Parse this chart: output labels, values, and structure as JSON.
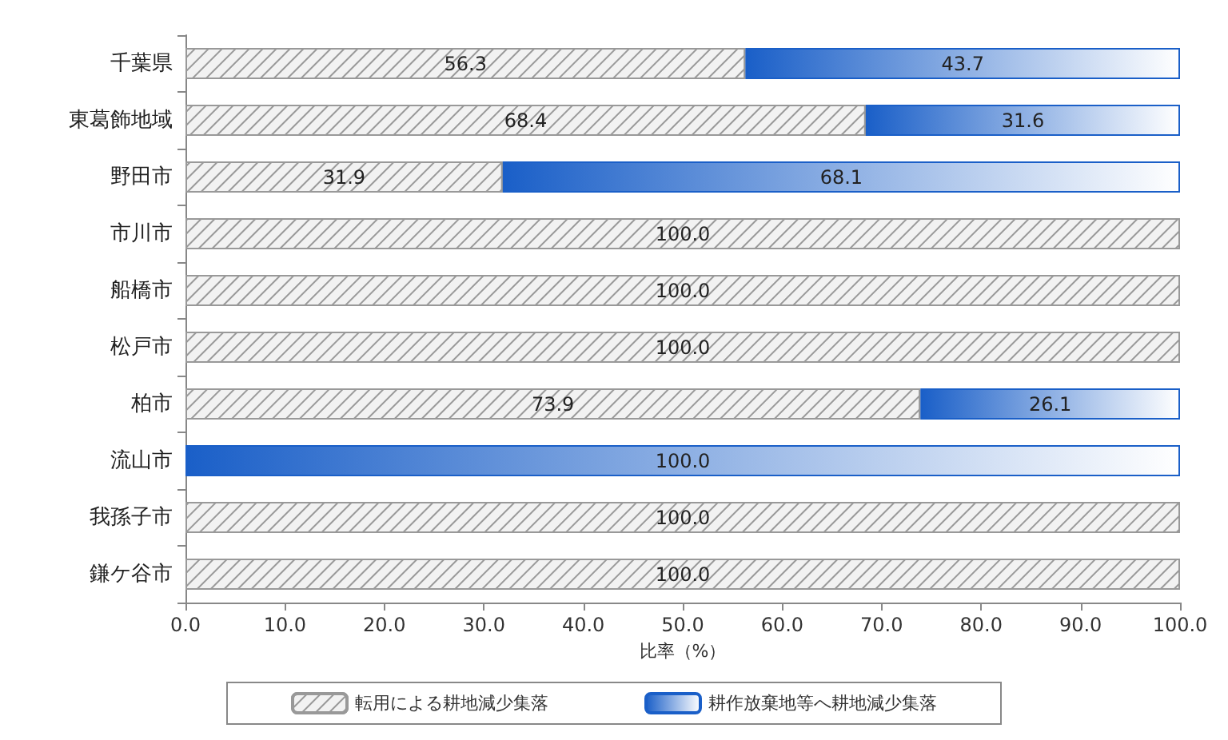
{
  "chart_data": {
    "type": "bar",
    "orientation": "horizontal",
    "stacked": true,
    "xlabel": "比率（%）",
    "categories": [
      "千葉県",
      "東葛飾地域",
      "野田市",
      "市川市",
      "船橋市",
      "松戸市",
      "柏市",
      "流山市",
      "我孫子市",
      "鎌ケ谷市"
    ],
    "series": [
      {
        "name": "転用による耕地減少集落",
        "color": "#f2f2f2",
        "values": [
          56.3,
          68.4,
          31.9,
          100,
          100,
          100,
          73.9,
          0,
          100,
          100
        ],
        "value_labels": [
          "56.3",
          "68.4",
          "31.9",
          "100.0",
          "100.0",
          "100.0",
          "73.9",
          null,
          "100.0",
          "100.0"
        ]
      },
      {
        "name": "耕作放棄地等へ耕地減少集落",
        "color": "#1a5fc8",
        "values": [
          43.7,
          31.6,
          68.1,
          0,
          0,
          0,
          26.1,
          100,
          0,
          0
        ],
        "value_labels": [
          "43.7",
          "31.6",
          "68.1",
          null,
          null,
          null,
          "26.1",
          "100.0",
          null,
          null
        ]
      }
    ],
    "xlim": [
      0,
      100
    ],
    "xticks": [
      {
        "value": 0,
        "label": "0.0"
      },
      {
        "value": 10,
        "label": "10.0"
      },
      {
        "value": 20,
        "label": "20.0"
      },
      {
        "value": 30,
        "label": "30.0"
      },
      {
        "value": 40,
        "label": "40.0"
      },
      {
        "value": 50,
        "label": "50.0"
      },
      {
        "value": 60,
        "label": "60.0"
      },
      {
        "value": 70,
        "label": "70.0"
      },
      {
        "value": 80,
        "label": "80.0"
      },
      {
        "value": 90,
        "label": "90.0"
      },
      {
        "value": 100,
        "label": "100.0"
      }
    ],
    "grid": false,
    "legend": "bottom"
  }
}
